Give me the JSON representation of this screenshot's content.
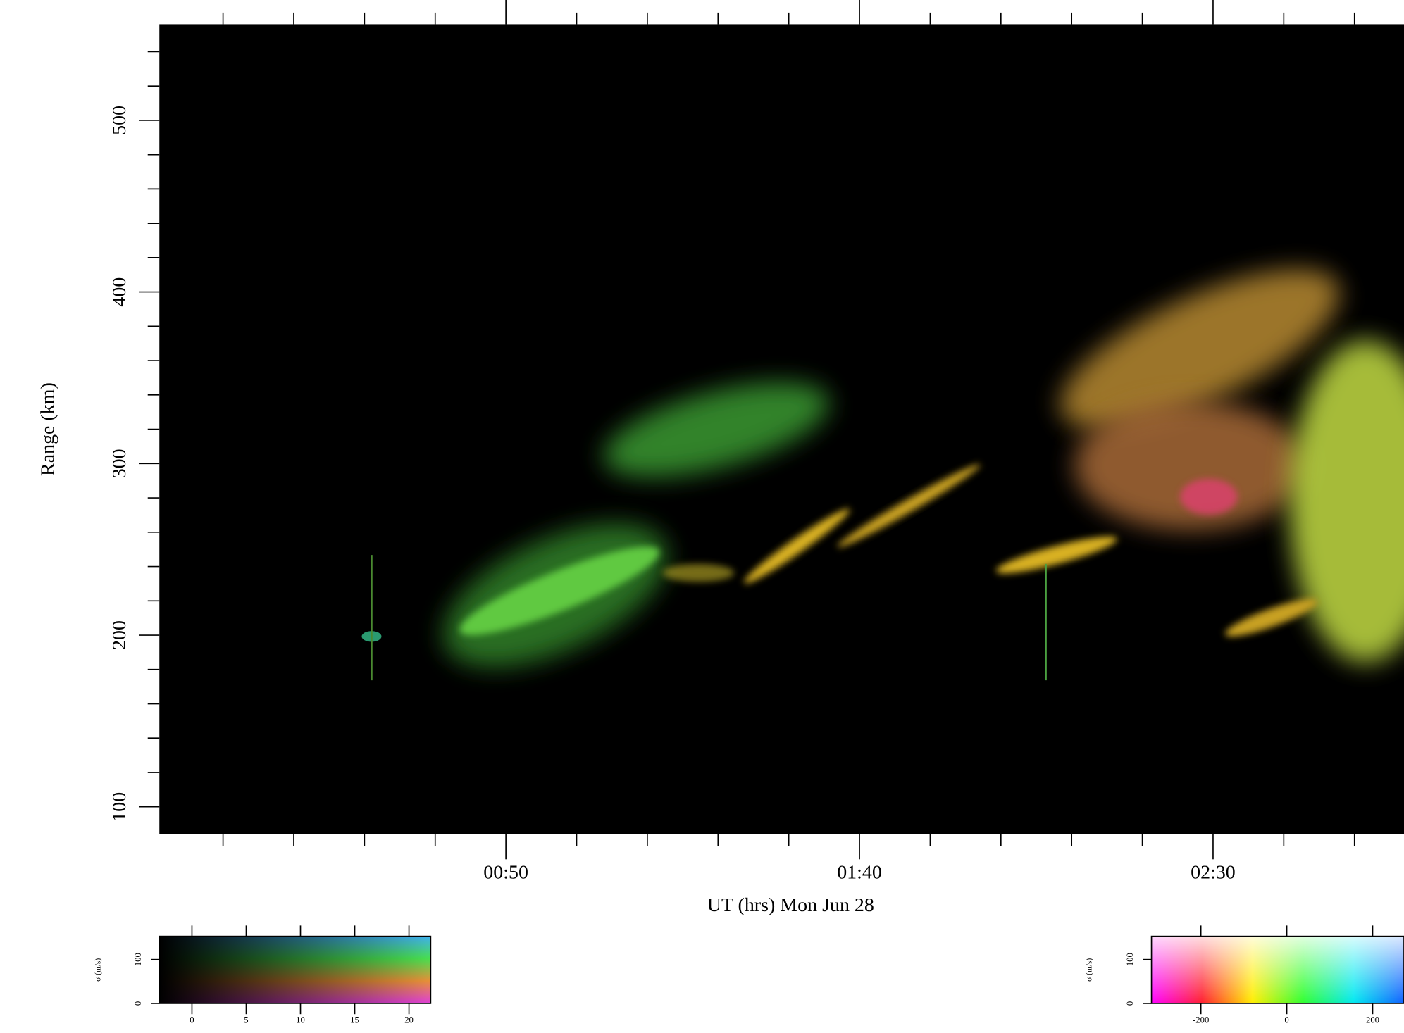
{
  "chart_data": [
    {
      "type": "range-time",
      "xlabel": "UT (hrs) Mon Jun 28",
      "ylabel": "Range (km)",
      "xlim": [
        1,
        177
      ],
      "xticks": [
        {
          "value": 50,
          "label": "00:50"
        },
        {
          "value": 100,
          "label": "01:40"
        },
        {
          "value": 150,
          "label": "02:30"
        }
      ],
      "xminorticks": [
        10,
        20,
        30,
        40,
        60,
        70,
        80,
        90,
        110,
        120,
        130,
        140,
        160,
        170
      ],
      "ylim": [
        84,
        556
      ],
      "yticks": [
        100,
        200,
        300,
        400,
        500
      ],
      "yminorticks": [
        120,
        140,
        160,
        180,
        220,
        240,
        260,
        280,
        320,
        340,
        360,
        380,
        420,
        440,
        460,
        480,
        520,
        540
      ],
      "background": "#000000"
    },
    {
      "type": "colorbar",
      "ylabel": "σ (m/s)",
      "xlim": [
        -3,
        22
      ],
      "xticks": [
        0,
        5,
        10,
        15,
        20
      ],
      "ylim": [
        0,
        153
      ],
      "yticks": [
        0,
        100
      ],
      "colors": [
        "#e040d8",
        "#e89038",
        "#48e050",
        "#40b0f0"
      ],
      "direction": "vertical"
    },
    {
      "type": "colorbar",
      "ylabel": "σ (m/s)",
      "xlim": [
        -315,
        273
      ],
      "xticks": [
        -200,
        0,
        200
      ],
      "ylim": [
        0,
        153
      ],
      "yticks": [
        0,
        100
      ],
      "colors": [
        "#ff00ff",
        "#ff2030",
        "#ffee00",
        "#30ff30",
        "#00e8f0",
        "#1060ff"
      ],
      "direction": "horizontal"
    }
  ]
}
